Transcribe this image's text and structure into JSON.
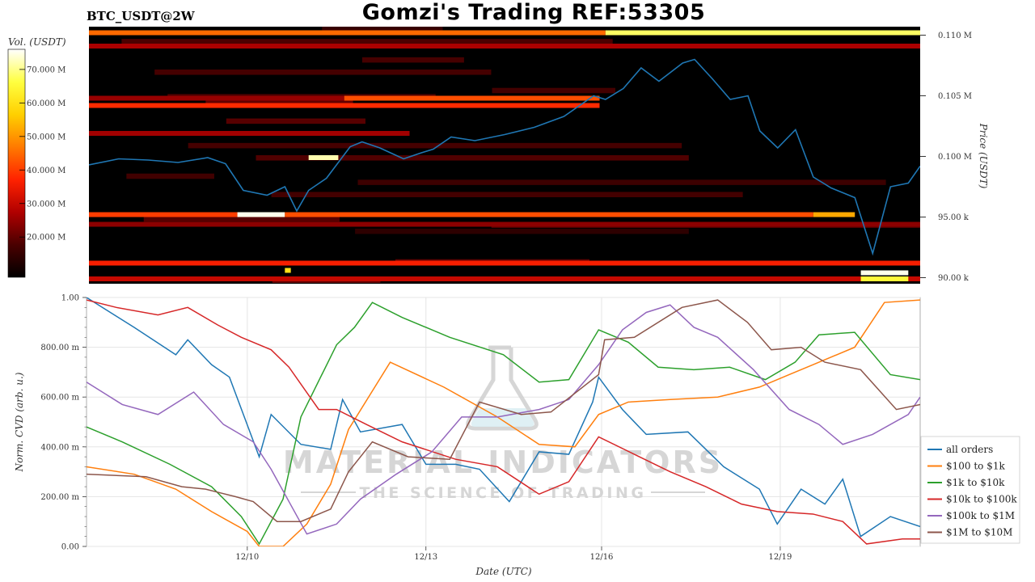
{
  "header": {
    "title": "Gomzi's Trading REF:53305",
    "symbol": "BTC_USDT@2W"
  },
  "watermark": {
    "line1": "MATERIAL INDICATORS",
    "line2": "THE SCIENCE OF TRADING"
  },
  "colors": {
    "colorbar": [
      "#000000",
      "#4a0000",
      "#b00000",
      "#ff2200",
      "#ff7a00",
      "#ffd000",
      "#ffff40",
      "#ffffff"
    ],
    "price_line": "#1f77b4"
  },
  "chart_data": [
    {
      "type": "heatmap",
      "title": "",
      "colorbar_label": "Vol. (USDT)",
      "colorbar_ticks": [
        "20.000 M",
        "30.000 M",
        "40.000 M",
        "50.000 M",
        "60.000 M",
        "70.000 M"
      ],
      "colorbar_tick_values": [
        20,
        30,
        40,
        50,
        60,
        70
      ],
      "colorbar_range": [
        8,
        76
      ],
      "ylabel": "Price (USDT)",
      "y_tick_labels": [
        "90.00 k",
        "95.00 k",
        "0.100 M",
        "0.105 M",
        "0.110 M"
      ],
      "y_tick_values": [
        90000,
        95000,
        100000,
        105000,
        110000
      ],
      "ylim": [
        89500,
        110700
      ],
      "xlim": [
        0,
        14
      ],
      "price_series": {
        "t": [
          0,
          0.5,
          1.0,
          1.5,
          2.0,
          2.3,
          2.6,
          3.0,
          3.3,
          3.5,
          3.7,
          4.0,
          4.4,
          4.6,
          4.9,
          5.3,
          5.6,
          5.8,
          6.1,
          6.5,
          7.0,
          7.5,
          8.0,
          8.5,
          8.7,
          9.0,
          9.3,
          9.6,
          10.0,
          10.2,
          10.5,
          10.8,
          11.1,
          11.3,
          11.6,
          11.9,
          12.2,
          12.5,
          12.9,
          13.2,
          13.5,
          13.8,
          14.0
        ],
        "price": [
          99300,
          99800,
          99700,
          99500,
          99900,
          99400,
          97200,
          96800,
          97500,
          95500,
          97200,
          98200,
          100800,
          101200,
          100700,
          99800,
          100300,
          100600,
          101600,
          101300,
          101800,
          102400,
          103300,
          105000,
          104700,
          105600,
          107300,
          106200,
          107700,
          108000,
          106400,
          104700,
          105000,
          102100,
          100700,
          102200,
          98300,
          97400,
          96600,
          92000,
          97500,
          97800,
          99200
        ]
      },
      "bands": [
        {
          "price": 110200,
          "start": 0,
          "end": 8.7,
          "intensity": 45
        },
        {
          "price": 110200,
          "start": 8.7,
          "end": 14,
          "intensity": 68
        },
        {
          "price": 109100,
          "start": 0,
          "end": 14,
          "intensity": 27
        },
        {
          "price": 104800,
          "start": 0,
          "end": 4.3,
          "intensity": 25
        },
        {
          "price": 104800,
          "start": 4.3,
          "end": 8.6,
          "intensity": 42
        },
        {
          "price": 104200,
          "start": 0,
          "end": 8.6,
          "intensity": 38
        },
        {
          "price": 101900,
          "start": 0,
          "end": 5.4,
          "intensity": 26
        },
        {
          "price": 99900,
          "start": 3.7,
          "end": 4.2,
          "intensity": 72
        },
        {
          "price": 95200,
          "start": 0,
          "end": 2.5,
          "intensity": 40
        },
        {
          "price": 95200,
          "start": 2.5,
          "end": 3.3,
          "intensity": 75
        },
        {
          "price": 95200,
          "start": 3.3,
          "end": 12.2,
          "intensity": 42
        },
        {
          "price": 95200,
          "start": 12.2,
          "end": 12.9,
          "intensity": 52
        },
        {
          "price": 94400,
          "start": 0,
          "end": 14,
          "intensity": 24
        },
        {
          "price": 91200,
          "start": 0,
          "end": 14,
          "intensity": 36
        },
        {
          "price": 90600,
          "start": 3.3,
          "end": 3.4,
          "intensity": 60
        },
        {
          "price": 90400,
          "start": 13.0,
          "end": 13.8,
          "intensity": 75
        },
        {
          "price": 89900,
          "start": 0,
          "end": 14,
          "intensity": 30
        },
        {
          "price": 89900,
          "start": 13.0,
          "end": 13.8,
          "intensity": 65
        }
      ]
    },
    {
      "type": "line",
      "title": "",
      "xlabel": "Date (UTC)",
      "ylabel": "Norm. CVD (arb. u.)",
      "x_tick_labels": [
        "12/10",
        "12/13",
        "12/16",
        "12/19"
      ],
      "x_tick_values": [
        2.7,
        5.7,
        8.65,
        11.65
      ],
      "xlim": [
        0,
        14
      ],
      "y_tick_labels": [
        "0.00",
        "200.00 m",
        "400.00 m",
        "600.00 m",
        "800.00 m",
        "1.00"
      ],
      "y_tick_values": [
        0,
        0.2,
        0.4,
        0.6,
        0.8,
        1.0
      ],
      "ylim": [
        0,
        1
      ],
      "grid": true,
      "legend_position": "bottom-right",
      "series": [
        {
          "name": "all orders",
          "color": "#1f77b4",
          "x": [
            0,
            0.8,
            1.5,
            1.7,
            2.1,
            2.4,
            2.9,
            3.1,
            3.6,
            4.1,
            4.3,
            4.6,
            5.3,
            5.7,
            6.2,
            6.6,
            7.1,
            7.6,
            8.1,
            8.5,
            8.6,
            9.0,
            9.4,
            10.1,
            10.7,
            11.3,
            11.6,
            12.0,
            12.4,
            12.7,
            13.0,
            13.5,
            14.0
          ],
          "y": [
            1.0,
            0.88,
            0.77,
            0.83,
            0.73,
            0.68,
            0.36,
            0.53,
            0.41,
            0.39,
            0.59,
            0.46,
            0.49,
            0.33,
            0.33,
            0.31,
            0.18,
            0.38,
            0.37,
            0.58,
            0.68,
            0.55,
            0.45,
            0.46,
            0.32,
            0.23,
            0.09,
            0.23,
            0.17,
            0.27,
            0.04,
            0.12,
            0.08
          ]
        },
        {
          "name": "$100 to $1k",
          "color": "#ff7f0e",
          "x": [
            0,
            0.8,
            1.5,
            2.1,
            2.7,
            2.9,
            3.3,
            3.7,
            4.1,
            4.4,
            5.1,
            6.0,
            6.9,
            7.6,
            8.2,
            8.6,
            9.1,
            9.8,
            10.6,
            11.3,
            11.8,
            12.2,
            12.9,
            13.4,
            14.0
          ],
          "y": [
            0.32,
            0.29,
            0.23,
            0.14,
            0.06,
            0.0,
            0.0,
            0.09,
            0.25,
            0.47,
            0.74,
            0.64,
            0.52,
            0.41,
            0.4,
            0.53,
            0.58,
            0.59,
            0.6,
            0.64,
            0.69,
            0.73,
            0.8,
            0.98,
            0.99
          ]
        },
        {
          "name": "$1k to $10k",
          "color": "#2ca02c",
          "x": [
            0,
            0.6,
            1.4,
            2.1,
            2.6,
            2.9,
            3.3,
            3.6,
            4.2,
            4.5,
            4.8,
            5.3,
            6.1,
            7.0,
            7.6,
            8.1,
            8.6,
            9.1,
            9.6,
            10.2,
            10.8,
            11.4,
            11.9,
            12.3,
            12.9,
            13.5,
            14.0
          ],
          "y": [
            0.48,
            0.42,
            0.33,
            0.24,
            0.12,
            0.01,
            0.19,
            0.52,
            0.81,
            0.88,
            0.98,
            0.92,
            0.84,
            0.77,
            0.66,
            0.67,
            0.87,
            0.82,
            0.72,
            0.71,
            0.72,
            0.67,
            0.74,
            0.85,
            0.86,
            0.69,
            0.67
          ]
        },
        {
          "name": "$10k to $100k",
          "color": "#d62728",
          "x": [
            0,
            0.5,
            1.2,
            1.7,
            2.2,
            2.6,
            3.1,
            3.4,
            3.9,
            4.2,
            4.7,
            5.3,
            6.2,
            6.9,
            7.6,
            8.1,
            8.6,
            9.2,
            9.8,
            10.4,
            11.0,
            11.6,
            12.2,
            12.7,
            13.1,
            13.7,
            14.0
          ],
          "y": [
            0.99,
            0.96,
            0.93,
            0.96,
            0.89,
            0.84,
            0.79,
            0.72,
            0.55,
            0.55,
            0.49,
            0.42,
            0.35,
            0.32,
            0.21,
            0.26,
            0.44,
            0.37,
            0.3,
            0.24,
            0.17,
            0.14,
            0.13,
            0.1,
            0.01,
            0.03,
            0.03
          ]
        },
        {
          "name": "$100k to $1M",
          "color": "#9467bd",
          "x": [
            0,
            0.6,
            1.2,
            1.8,
            2.3,
            2.8,
            3.1,
            3.4,
            3.7,
            4.2,
            4.6,
            5.2,
            5.8,
            6.3,
            6.9,
            7.6,
            8.1,
            8.6,
            9.0,
            9.4,
            9.8,
            10.2,
            10.6,
            11.2,
            11.8,
            12.3,
            12.7,
            13.2,
            13.8,
            14.0
          ],
          "y": [
            0.66,
            0.57,
            0.53,
            0.62,
            0.49,
            0.42,
            0.31,
            0.18,
            0.05,
            0.09,
            0.19,
            0.29,
            0.38,
            0.52,
            0.52,
            0.55,
            0.59,
            0.73,
            0.87,
            0.94,
            0.97,
            0.88,
            0.84,
            0.71,
            0.55,
            0.49,
            0.41,
            0.45,
            0.53,
            0.6
          ]
        },
        {
          "name": "$1M to $10M",
          "color": "#8c564b",
          "x": [
            0,
            1.0,
            1.6,
            2.0,
            2.5,
            2.8,
            3.2,
            3.6,
            4.1,
            4.4,
            4.8,
            5.4,
            6.1,
            6.6,
            7.3,
            7.8,
            8.6,
            8.7,
            9.2,
            10.0,
            10.6,
            11.1,
            11.5,
            12.0,
            12.4,
            13.0,
            13.6,
            14.0
          ],
          "y": [
            0.29,
            0.28,
            0.24,
            0.23,
            0.2,
            0.18,
            0.1,
            0.1,
            0.15,
            0.3,
            0.42,
            0.36,
            0.35,
            0.58,
            0.53,
            0.54,
            0.69,
            0.83,
            0.84,
            0.96,
            0.99,
            0.9,
            0.79,
            0.8,
            0.74,
            0.71,
            0.55,
            0.57
          ]
        }
      ]
    }
  ]
}
